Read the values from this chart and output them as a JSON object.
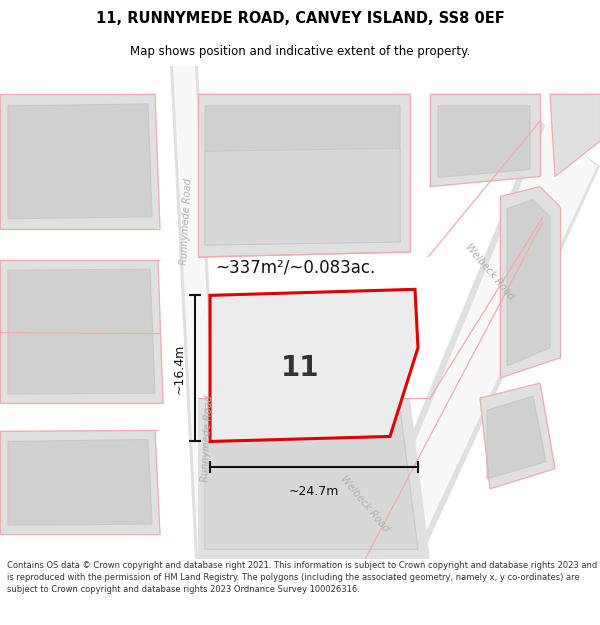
{
  "title": "11, RUNNYMEDE ROAD, CANVEY ISLAND, SS8 0EF",
  "subtitle": "Map shows position and indicative extent of the property.",
  "footer": "Contains OS data © Crown copyright and database right 2021. This information is subject to Crown copyright and database rights 2023 and is reproduced with the permission of HM Land Registry. The polygons (including the associated geometry, namely x, y co-ordinates) are subject to Crown copyright and database rights 2023 Ordnance Survey 100026316.",
  "area_text": "~337m²/~0.083ac.",
  "number_text": "11",
  "width_text": "~24.7m",
  "height_text": "~16.4m",
  "map_bg": "#f2f2f2",
  "road_bg": "#e8e8e8",
  "road_white": "#fafafa",
  "building_outer": "#e0e0e0",
  "building_inner": "#d0d0d0",
  "pink": "#f4aaaa",
  "red": "#e00000",
  "road_label_color": "#b0b0b0",
  "dim_color": "#111111",
  "area_color": "#111111",
  "num_color": "#333333",
  "figsize": [
    6.0,
    6.25
  ],
  "dpi": 100
}
